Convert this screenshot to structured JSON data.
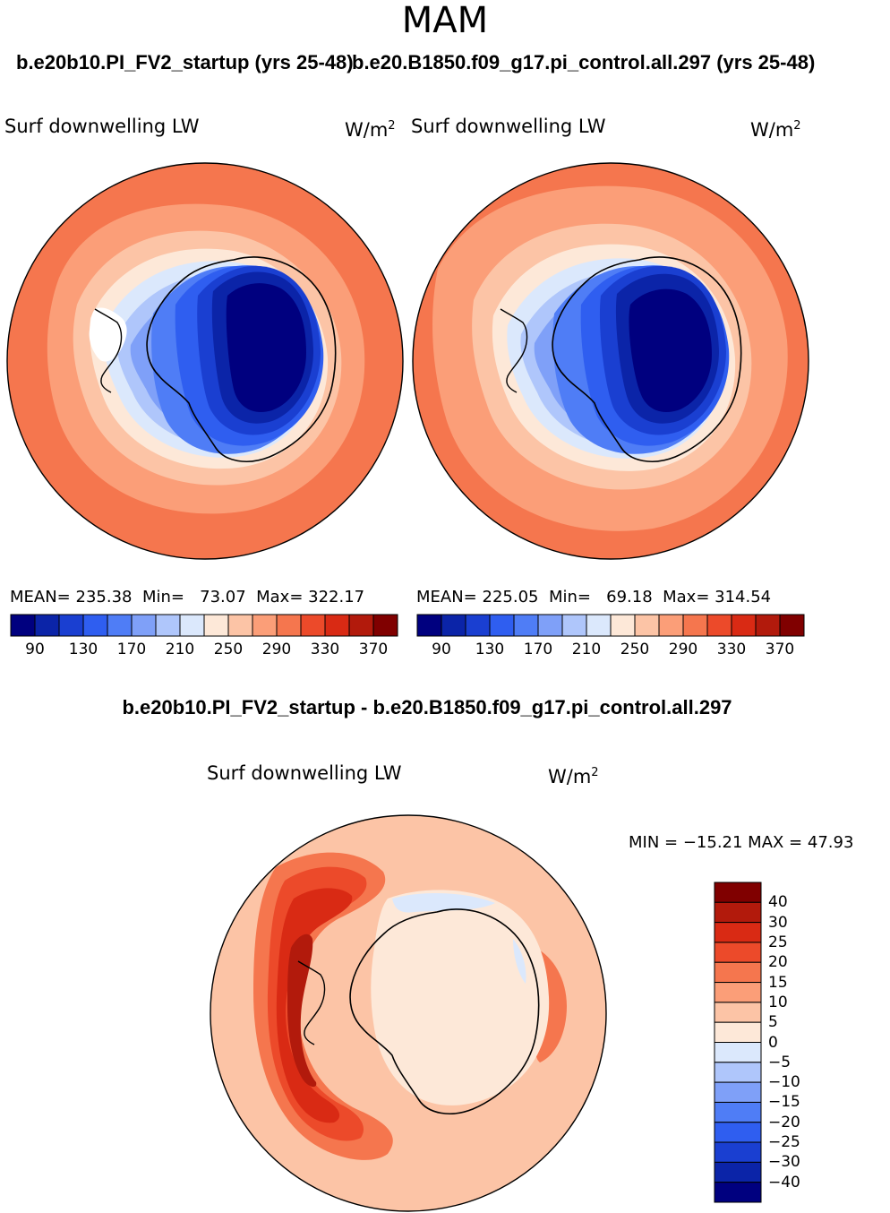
{
  "season": "MAM",
  "left_panel": {
    "case_title": "b.e20b10.PI_FV2_startup (yrs 25-48)",
    "variable": "Surf downwelling LW",
    "units_base": "W/m",
    "units_exp": "2",
    "mean_label": "MEAN=",
    "mean": "235.38",
    "min_label": "Min=",
    "min": "73.07",
    "max_label": "Max=",
    "max": "322.17"
  },
  "right_panel": {
    "case_title": "b.e20.B1850.f09_g17.pi_control.all.297 (yrs 25-48)",
    "variable": "Surf downwelling LW",
    "units_base": "W/m",
    "units_exp": "2",
    "mean_label": "MEAN=",
    "mean": "225.05",
    "min_label": "Min=",
    "min": "69.18",
    "max_label": "Max=",
    "max": "314.54"
  },
  "top_colorbar": {
    "colors": [
      "#00007f",
      "#0b24a8",
      "#1a3fd1",
      "#2f5ef0",
      "#4f7df6",
      "#7fa0f8",
      "#afc6fb",
      "#dbe8fc",
      "#fde8d8",
      "#fcc4a6",
      "#fb9e78",
      "#f5764e",
      "#ec4a2a",
      "#d92a14",
      "#b21a0c",
      "#800000"
    ],
    "ticks": [
      "90",
      "130",
      "170",
      "210",
      "250",
      "290",
      "330",
      "370"
    ]
  },
  "diff_panel": {
    "title": "b.e20b10.PI_FV2_startup - b.e20.B1850.f09_g17.pi_control.all.297",
    "variable": "Surf downwelling LW",
    "units_base": "W/m",
    "units_exp": "2",
    "minmax_text": "MIN = −15.21  MAX =  47.93"
  },
  "diff_colorbar": {
    "colors": [
      "#800000",
      "#b21a0c",
      "#d92a14",
      "#ec4a2a",
      "#f5764e",
      "#fb9e78",
      "#fcc4a6",
      "#fde8d8",
      "#dbe8fc",
      "#afc6fb",
      "#7fa0f8",
      "#4f7df6",
      "#2f5ef0",
      "#1a3fd1",
      "#0b24a8",
      "#00007f"
    ],
    "ticks": [
      "40",
      "30",
      "25",
      "20",
      "15",
      "10",
      "5",
      "0",
      "−5",
      "−10",
      "−15",
      "−20",
      "−25",
      "−30",
      "−40"
    ]
  }
}
